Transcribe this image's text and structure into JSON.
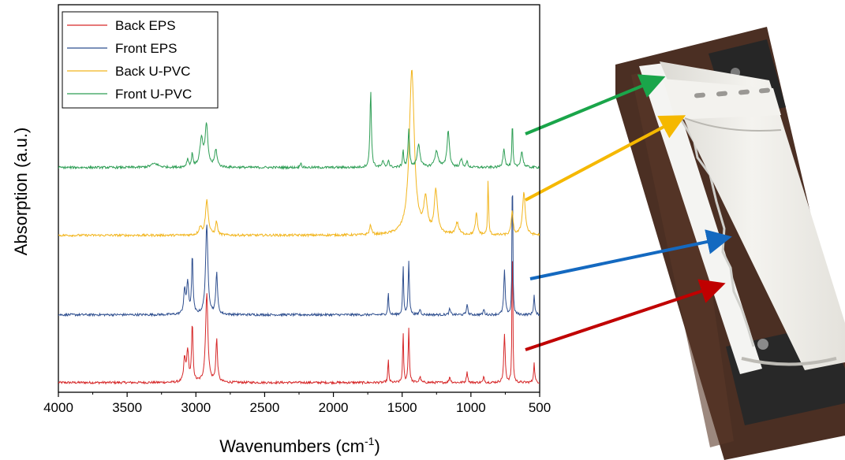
{
  "chart_data": {
    "type": "line",
    "xlabel": "Wavenumbers (cm",
    "xlabel_sup": "-1",
    "xlabel_close": ")",
    "ylabel": "Absorption (a.u.)",
    "xlim": [
      4000,
      500
    ],
    "x_reversed": true,
    "x_ticks": [
      4000,
      3500,
      3000,
      2500,
      2000,
      1500,
      1000,
      500
    ],
    "y_ticks_shown": false,
    "legend_position": "top-left",
    "series": [
      {
        "name": "Back EPS",
        "color": "#d62728",
        "baseline": 0.0,
        "peaks": [
          [
            3082,
            0.12,
            8
          ],
          [
            3060,
            0.16,
            8
          ],
          [
            3026,
            0.3,
            6
          ],
          [
            2921,
            0.46,
            10
          ],
          [
            2849,
            0.22,
            7
          ],
          [
            1601,
            0.12,
            4
          ],
          [
            1493,
            0.26,
            4
          ],
          [
            1452,
            0.28,
            5
          ],
          [
            1370,
            0.03,
            6
          ],
          [
            1154,
            0.03,
            6
          ],
          [
            1028,
            0.06,
            5
          ],
          [
            906,
            0.03,
            5
          ],
          [
            756,
            0.25,
            6
          ],
          [
            698,
            0.9,
            3
          ],
          [
            540,
            0.1,
            5
          ]
        ]
      },
      {
        "name": "Front EPS",
        "color": "#2f4f8f",
        "baseline": 0.35,
        "peaks": [
          [
            3082,
            0.12,
            8
          ],
          [
            3060,
            0.16,
            8
          ],
          [
            3026,
            0.3,
            6
          ],
          [
            2921,
            0.46,
            10
          ],
          [
            2849,
            0.22,
            7
          ],
          [
            1601,
            0.12,
            4
          ],
          [
            1493,
            0.26,
            4
          ],
          [
            1452,
            0.28,
            5
          ],
          [
            1370,
            0.03,
            6
          ],
          [
            1154,
            0.03,
            6
          ],
          [
            1028,
            0.06,
            5
          ],
          [
            906,
            0.03,
            5
          ],
          [
            756,
            0.23,
            6
          ],
          [
            698,
            0.88,
            3
          ],
          [
            540,
            0.1,
            5
          ]
        ]
      },
      {
        "name": "Back U-PVC",
        "color": "#f2b51d",
        "baseline": 0.76,
        "peaks": [
          [
            2968,
            0.04,
            12
          ],
          [
            2920,
            0.18,
            12
          ],
          [
            2850,
            0.07,
            8
          ],
          [
            1730,
            0.05,
            8
          ],
          [
            1430,
            0.85,
            22
          ],
          [
            1330,
            0.17,
            15
          ],
          [
            1255,
            0.22,
            14
          ],
          [
            1100,
            0.06,
            14
          ],
          [
            960,
            0.11,
            9
          ],
          [
            875,
            0.29,
            4
          ],
          [
            700,
            0.12,
            8
          ],
          [
            615,
            0.22,
            12
          ]
        ]
      },
      {
        "name": "Front U-PVC",
        "color": "#2e9e55",
        "baseline": 1.11,
        "peaks": [
          [
            3300,
            0.02,
            30
          ],
          [
            3060,
            0.04,
            8
          ],
          [
            3026,
            0.07,
            6
          ],
          [
            2960,
            0.14,
            14
          ],
          [
            2923,
            0.21,
            12
          ],
          [
            2855,
            0.09,
            10
          ],
          [
            2237,
            0.03,
            5
          ],
          [
            1729,
            0.4,
            6
          ],
          [
            1640,
            0.03,
            8
          ],
          [
            1600,
            0.04,
            6
          ],
          [
            1493,
            0.09,
            5
          ],
          [
            1452,
            0.2,
            6
          ],
          [
            1380,
            0.12,
            12
          ],
          [
            1250,
            0.08,
            16
          ],
          [
            1165,
            0.19,
            10
          ],
          [
            1070,
            0.04,
            10
          ],
          [
            1028,
            0.03,
            6
          ],
          [
            760,
            0.1,
            8
          ],
          [
            698,
            0.24,
            4
          ],
          [
            630,
            0.08,
            10
          ]
        ]
      }
    ]
  },
  "annotation_arrows": [
    {
      "target": "Front U-PVC",
      "color": "#1aa54a"
    },
    {
      "target": "Back U-PVC",
      "color": "#f5b800"
    },
    {
      "target": "Front EPS",
      "color": "#1469c0"
    },
    {
      "target": "Back EPS",
      "color": "#c00000"
    }
  ],
  "photo": {
    "subject": "siding-sample-photo",
    "colors": {
      "background": "#4a2e22",
      "panel": "#f1f0ec",
      "foam": "#f6f6f4",
      "bracket": "#2a2a2a"
    }
  }
}
